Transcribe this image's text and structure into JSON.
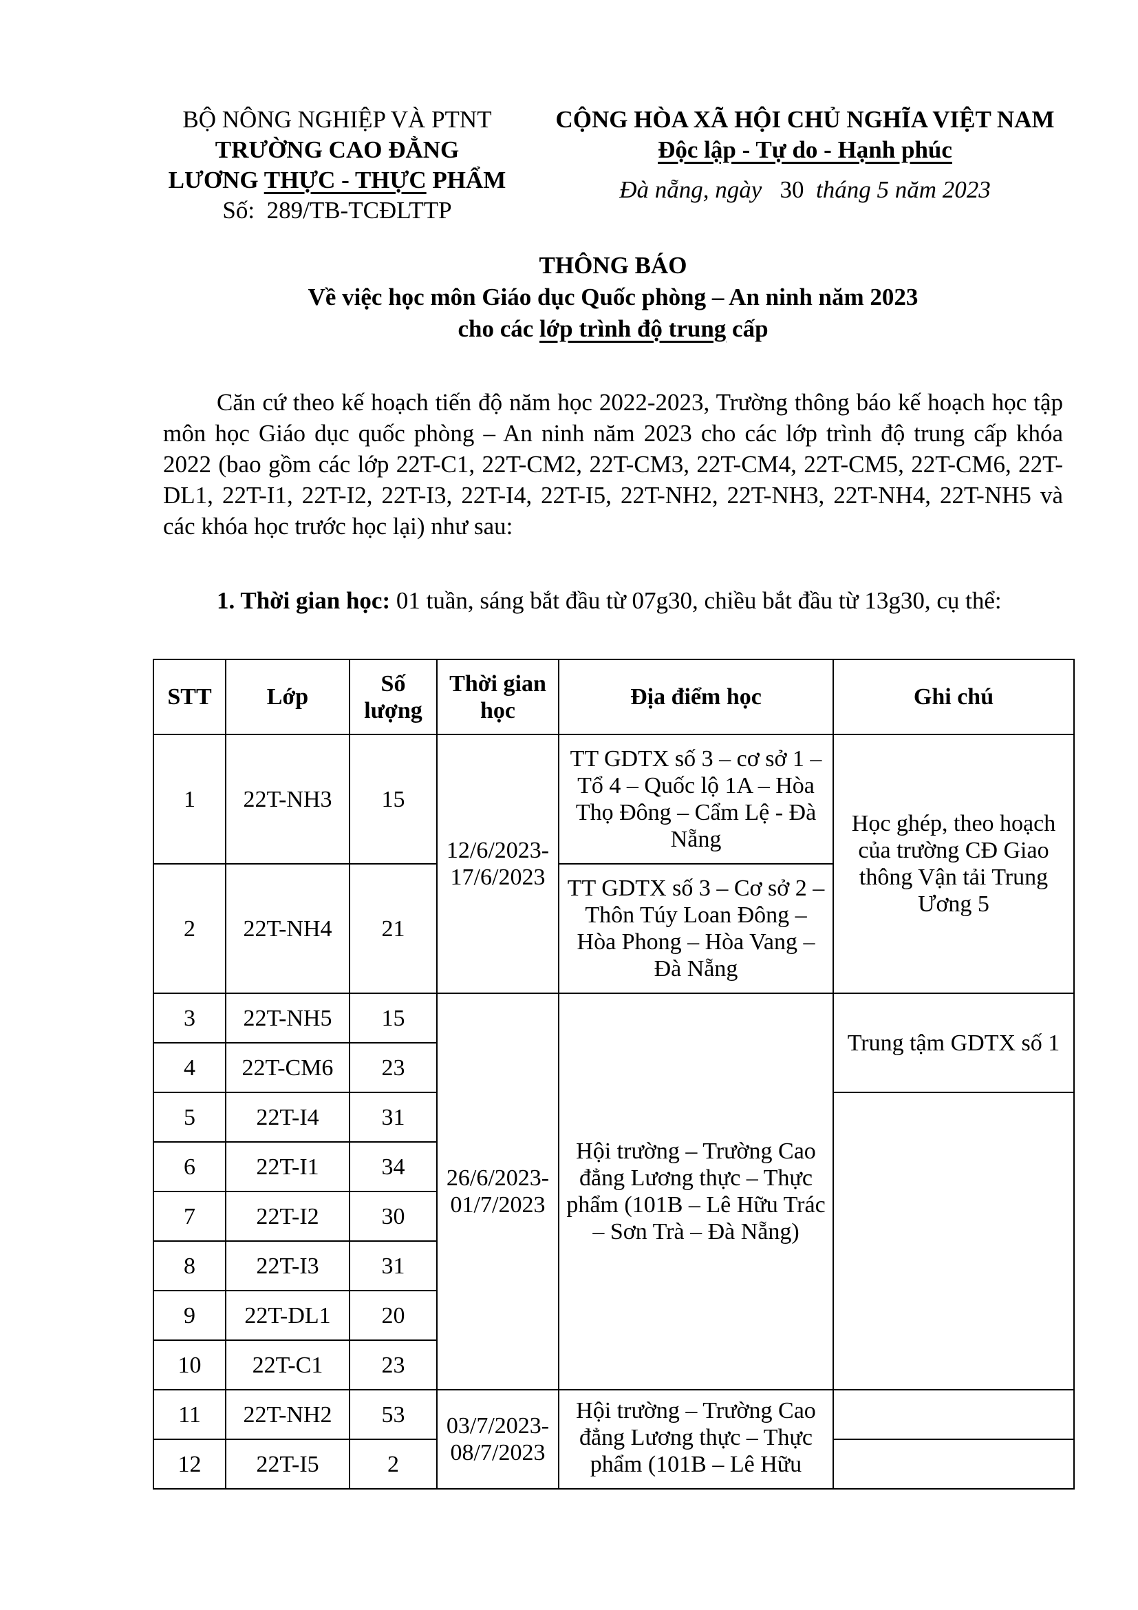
{
  "header_left": {
    "ministry": "BỘ NÔNG NGHIỆP VÀ PTNT",
    "school_line1": "TRƯỜNG CAO ĐẲNG",
    "school_line2_a": "LƯƠNG ",
    "school_line2_b": "THỰC - THỰC",
    "school_line2_c": " PHẨM",
    "number_label": "Số:",
    "number": "289/TB-TCĐLTTP"
  },
  "header_right": {
    "nation": "CỘNG HÒA XÃ HỘI CHỦ NGHĨA VIỆT NAM",
    "motto": "Độc lập - Tự do - Hạnh phúc",
    "date_a": "Đà nẵng, ngày",
    "date_day": "30",
    "date_b": "tháng 5 năm 2023"
  },
  "title": {
    "main": "THÔNG BÁO",
    "sub1": "Về việc học môn Giáo dục Quốc phòng – An ninh năm 2023",
    "sub2_a": "cho các ",
    "sub2_b": "lớp trình độ trung",
    "sub2_c": " cấp"
  },
  "body": {
    "paragraph": "Căn cứ theo kế hoạch tiến độ năm học 2022-2023, Trường thông báo kế hoạch học tập môn học Giáo dục quốc phòng – An ninh năm 2023 cho các lớp trình độ trung cấp khóa 2022 (bao gồm các lớp 22T-C1, 22T-CM2, 22T-CM3, 22T-CM4, 22T-CM5, 22T-CM6, 22T-DL1, 22T-I1, 22T-I2, 22T-I3, 22T-I4, 22T-I5, 22T-NH2, 22T-NH3, 22T-NH4, 22T-NH5 và các khóa học trước học lại) như sau:",
    "section1_label": "1. Thời gian học:",
    "section1_text": " 01 tuần, sáng bắt đầu từ 07g30, chiều bắt đầu từ 13g30, cụ thể:"
  },
  "table": {
    "headers": [
      "STT",
      "Lớp",
      "Số lượng",
      "Thời gian học",
      "Địa điểm học",
      "Ghi chú"
    ],
    "rows": [
      {
        "stt": "1",
        "class": "22T-NH3",
        "count": "15"
      },
      {
        "stt": "2",
        "class": "22T-NH4",
        "count": "21"
      },
      {
        "stt": "3",
        "class": "22T-NH5",
        "count": "15"
      },
      {
        "stt": "4",
        "class": "22T-CM6",
        "count": "23"
      },
      {
        "stt": "5",
        "class": "22T-I4",
        "count": "31"
      },
      {
        "stt": "6",
        "class": "22T-I1",
        "count": "34"
      },
      {
        "stt": "7",
        "class": "22T-I2",
        "count": "30"
      },
      {
        "stt": "8",
        "class": "22T-I3",
        "count": "31"
      },
      {
        "stt": "9",
        "class": "22T-DL1",
        "count": "20"
      },
      {
        "stt": "10",
        "class": "22T-C1",
        "count": "23"
      },
      {
        "stt": "11",
        "class": "22T-NH2",
        "count": "53"
      },
      {
        "stt": "12",
        "class": "22T-I5",
        "count": "2"
      }
    ],
    "dates": [
      "12/6/2023-17/6/2023",
      "26/6/2023-01/7/2023",
      "03/7/2023-08/7/2023"
    ],
    "locations": [
      "TT GDTX số 3 – cơ sở 1 – Tổ 4 – Quốc lộ 1A – Hòa Thọ Đông – Cẩm Lệ - Đà Nẵng",
      "TT GDTX số 3 – Cơ sở 2 – Thôn Túy Loan Đông – Hòa Phong – Hòa Vang – Đà Nẵng",
      "Hội trường – Trường Cao đẳng Lương thực – Thực phẩm (101B – Lê Hữu Trác – Sơn Trà – Đà Nẵng)",
      "Hội trường – Trường Cao đẳng Lương thực – Thực phẩm (101B – Lê Hữu"
    ],
    "notes": [
      "Học ghép, theo hoạch của trường CĐ Giao thông Vận tải Trung Ương 5",
      "Trung tậm GDTX số 1"
    ]
  }
}
